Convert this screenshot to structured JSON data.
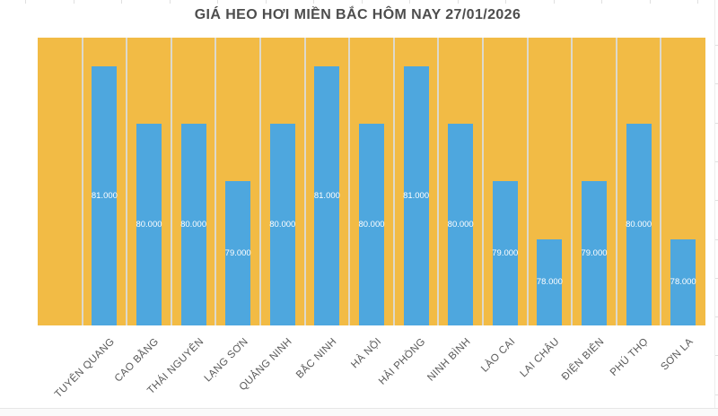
{
  "chart_data": {
    "type": "bar",
    "title": "GIÁ HEO HƠI MIỀN BẮC HÔM NAY 27/01/2026",
    "categories": [
      "TUYÊN QUANG",
      "CAO BẰNG",
      "THÁI NGUYÊN",
      "LẠNG SƠN",
      "QUẢNG NINH",
      "BẮC NINH",
      "HÀ NỘI",
      "HẢI PHÒNG",
      "NINH BÌNH",
      "LÀO CAI",
      "LAI CHÂU",
      "ĐIỆN BIÊN",
      "PHÚ THỌ",
      "SƠN LA"
    ],
    "values": [
      81000,
      80000,
      80000,
      79000,
      80000,
      81000,
      80000,
      81000,
      80000,
      79000,
      78000,
      79000,
      80000,
      78000
    ],
    "value_labels": [
      "81.000",
      "80.000",
      "80.000",
      "79.000",
      "80.000",
      "81.000",
      "80.000",
      "81.000",
      "80.000",
      "79.000",
      "78.000",
      "79.000",
      "80.000",
      "78.000"
    ],
    "xlabel": "",
    "ylabel": "",
    "ylim": [
      76500,
      81500
    ],
    "legend": "none",
    "gridlines": "vertical-category-separators",
    "layout": {
      "leading_empty_category_slot": true,
      "value_label_position": "inside-center",
      "category_label_rotation_deg": 45
    },
    "colors": {
      "bar": "#4EA7DE",
      "plot_background": "#F2BB45",
      "gridline": "#DDD9CC",
      "title_text": "#4D4D4D",
      "axis_label_text": "#595959",
      "value_label_text": "#FFFFFF"
    }
  }
}
